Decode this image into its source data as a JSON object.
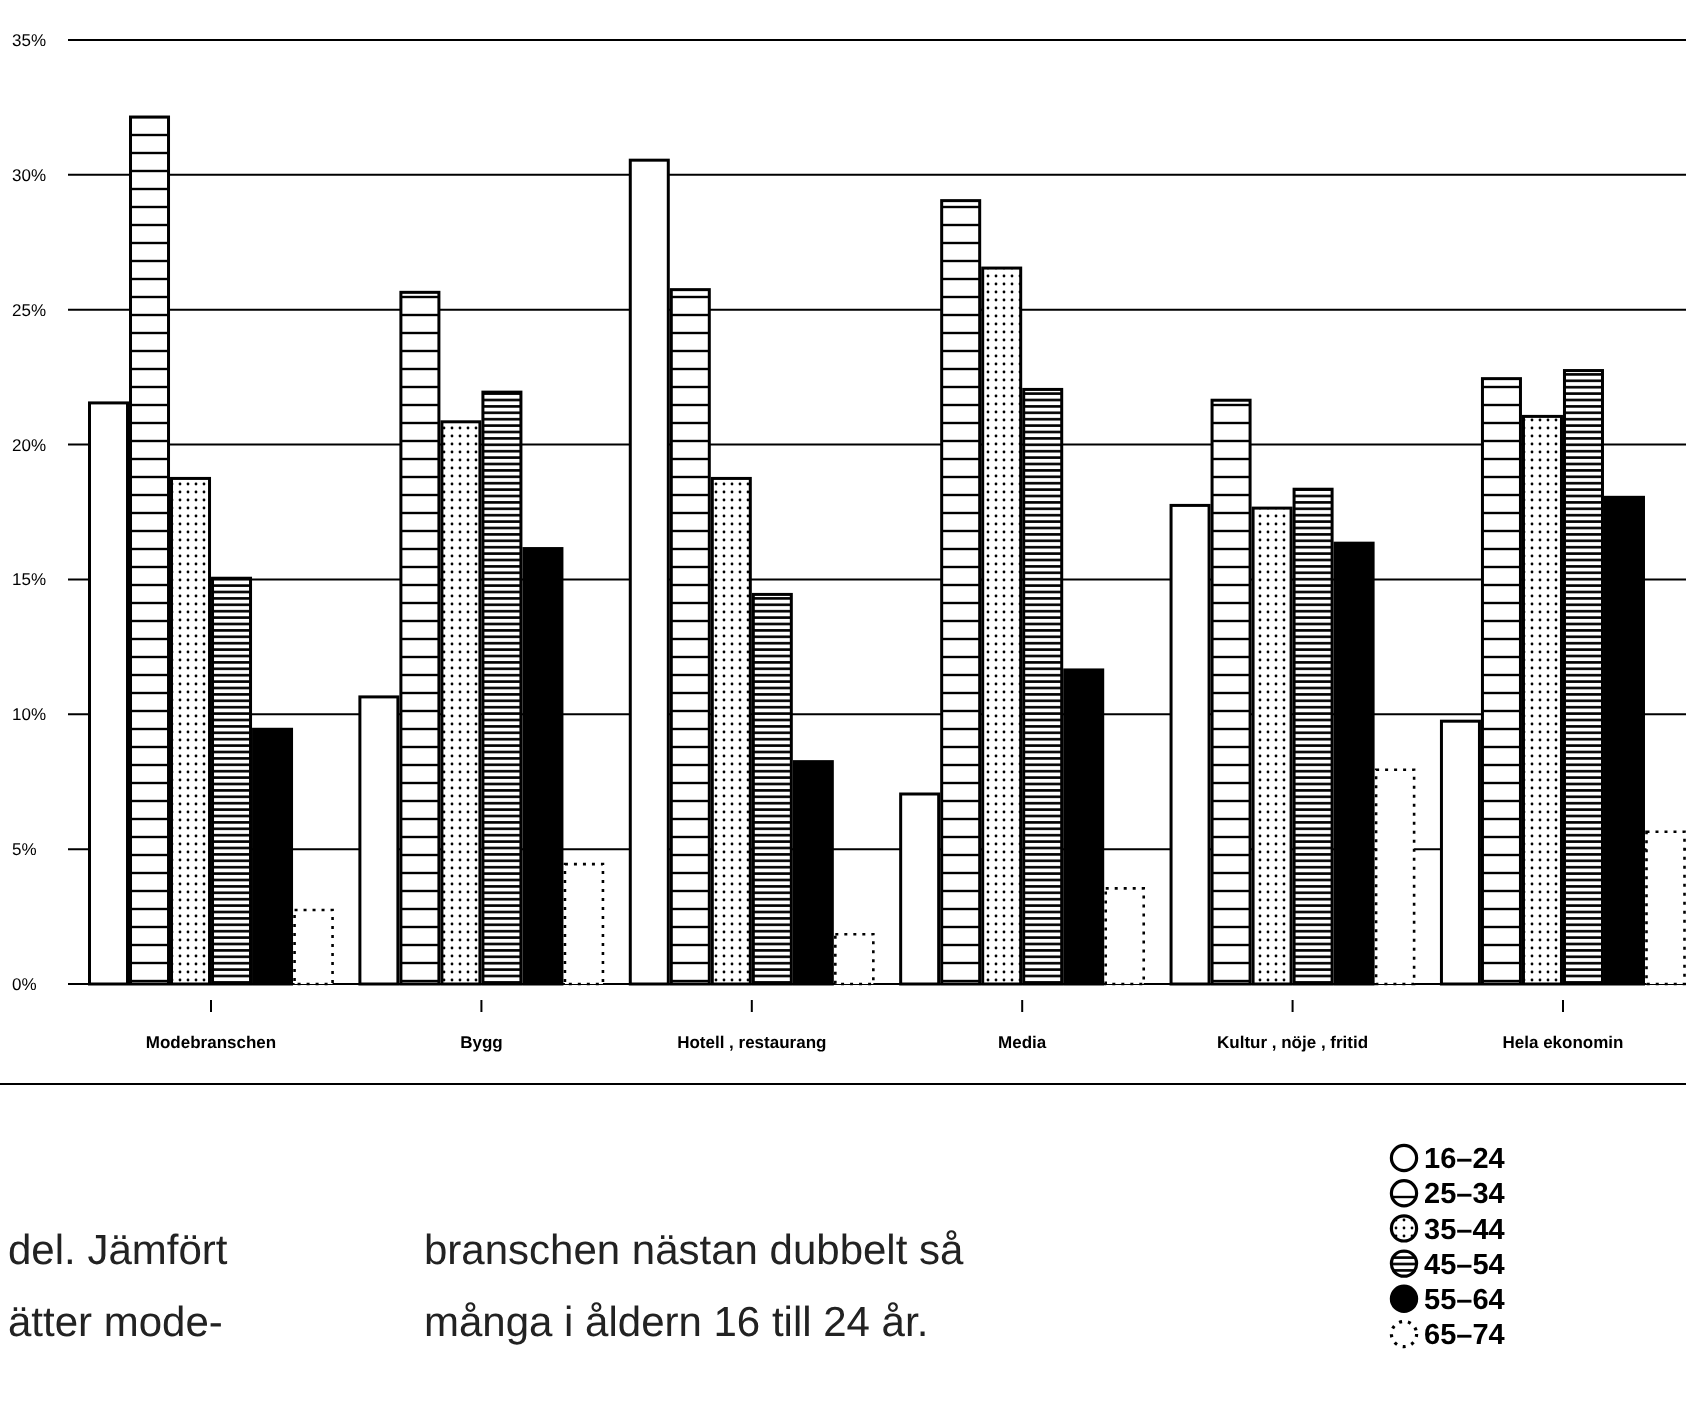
{
  "chart_data": {
    "type": "bar",
    "categories": [
      "Modebranschen",
      "Bygg",
      "Hotell , restaurang",
      "Media",
      "Kultur , nöje , fritid",
      "Hela ekonomin"
    ],
    "series": [
      {
        "name": "16–24",
        "color": "#ffffff",
        "values": [
          21.6,
          10.7,
          30.6,
          7.1,
          17.8,
          9.8
        ]
      },
      {
        "name": "25–34",
        "color": "#000000",
        "values": [
          32.2,
          25.7,
          25.8,
          29.1,
          21.7,
          22.5
        ]
      },
      {
        "name": "35–44",
        "color": "#000000",
        "values": [
          18.8,
          20.9,
          18.8,
          26.6,
          17.7,
          21.1
        ]
      },
      {
        "name": "45–54",
        "color": "#000000",
        "values": [
          15.1,
          22.0,
          14.5,
          22.1,
          18.4,
          22.8
        ]
      },
      {
        "name": "55–64",
        "color": "#000000",
        "values": [
          9.5,
          16.2,
          8.3,
          11.7,
          16.4,
          18.1
        ]
      },
      {
        "name": "65–74",
        "color": "#ffffff",
        "values": [
          2.8,
          4.5,
          1.9,
          3.6,
          8.0,
          5.7
        ]
      }
    ],
    "ylim": [
      0,
      35
    ],
    "yticks": [
      {
        "value": 0,
        "label": "0%"
      },
      {
        "value": 5,
        "label": "5%"
      },
      {
        "value": 10,
        "label": "10%"
      },
      {
        "value": 15,
        "label": "15%"
      },
      {
        "value": 20,
        "label": "20%"
      },
      {
        "value": 25,
        "label": "25%"
      },
      {
        "value": 30,
        "label": "30%"
      },
      {
        "value": 35,
        "label": "35%"
      }
    ],
    "grid": "y",
    "legend": "bottom right",
    "annotations": [
      "del. Jämfört",
      "ätter mode-",
      "branschen nästan dubbelt så",
      "många i åldern 16 till 24 år."
    ]
  }
}
